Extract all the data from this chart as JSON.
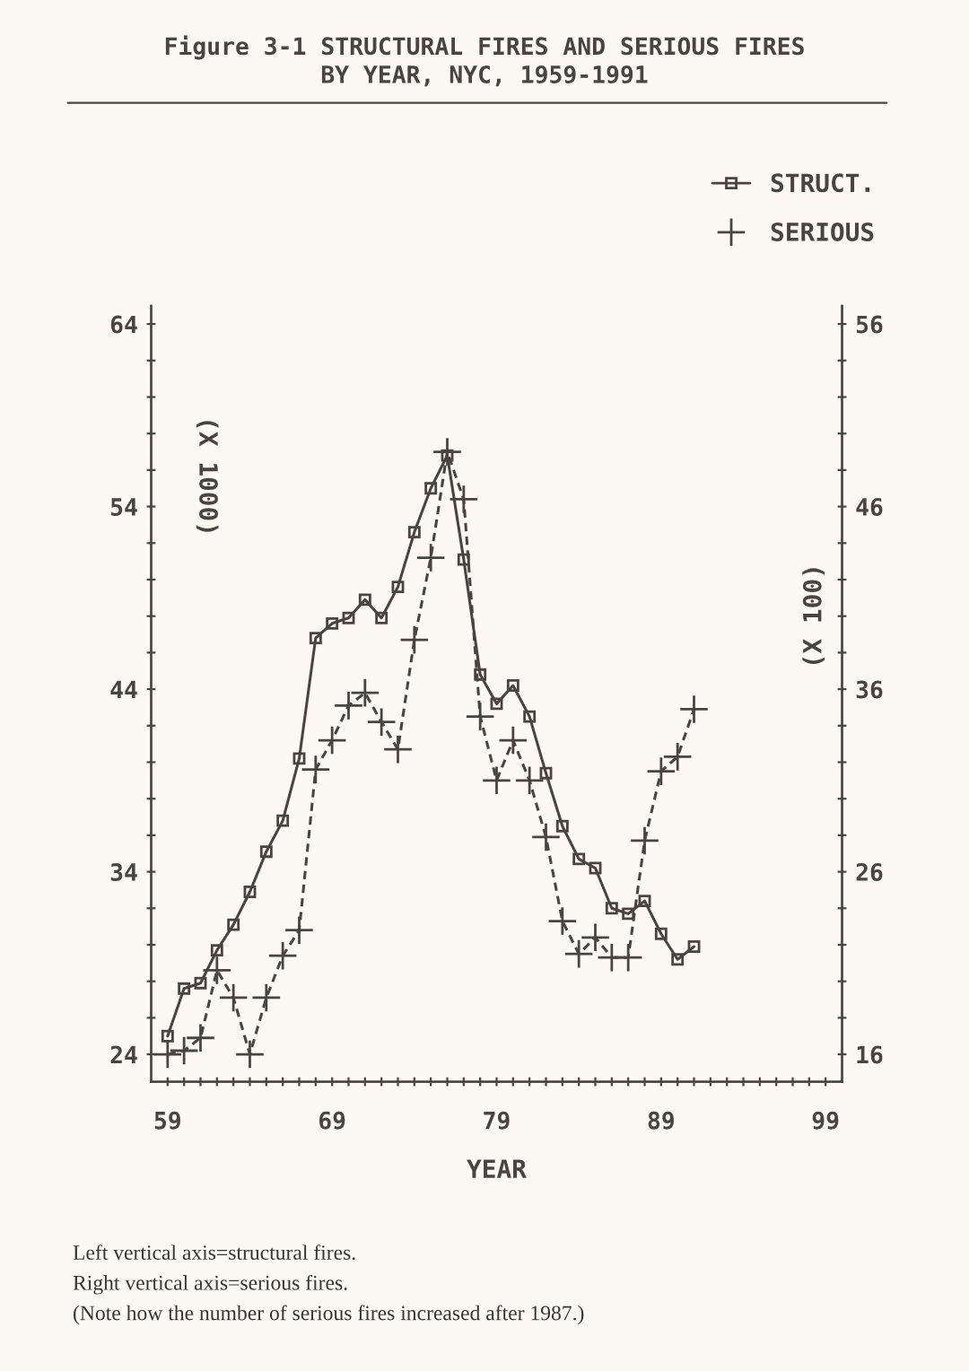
{
  "chart_data": {
    "type": "line",
    "title": "Figure 3-1 STRUCTURAL FIRES AND SERIOUS FIRES\nBY YEAR, NYC, 1959-1991",
    "xlabel": "YEAR",
    "ylabel": "(X 1000)",
    "y2label": "(X 100)",
    "x": [
      1959,
      1960,
      1961,
      1962,
      1963,
      1964,
      1965,
      1966,
      1967,
      1968,
      1969,
      1970,
      1971,
      1972,
      1973,
      1974,
      1975,
      1976,
      1977,
      1978,
      1979,
      1980,
      1981,
      1982,
      1983,
      1984,
      1985,
      1986,
      1987,
      1988,
      1989,
      1990,
      1991
    ],
    "series": [
      {
        "name": "STRUCT.",
        "color": "#4a4440",
        "marker": "square",
        "line_style": "solid",
        "values": [
          25.0,
          27.6,
          27.9,
          29.7,
          31.1,
          32.9,
          35.1,
          36.8,
          40.2,
          46.8,
          47.6,
          47.9,
          48.9,
          47.9,
          49.6,
          52.6,
          55.0,
          56.8,
          51.1,
          44.8,
          43.2,
          44.2,
          42.5,
          39.4,
          36.5,
          34.7,
          34.2,
          32.0,
          31.7,
          32.4,
          30.6,
          29.2,
          29.9
        ]
      },
      {
        "name": "SERIOUS",
        "color": "#4a4440",
        "marker": "cross",
        "line_style": "dashed",
        "axis": "y2",
        "values": [
          16.0,
          16.2,
          16.9,
          20.6,
          19.1,
          16.0,
          19.1,
          21.4,
          22.8,
          31.6,
          33.2,
          35.1,
          35.8,
          34.2,
          32.7,
          38.7,
          43.2,
          49.0,
          46.4,
          34.5,
          31.0,
          33.2,
          31.0,
          27.9,
          23.3,
          21.5,
          22.4,
          21.3,
          21.3,
          27.7,
          31.5,
          32.3,
          34.9
        ]
      }
    ],
    "xlim": [
      1958,
      2000
    ],
    "xticks": [
      {
        "value": 1959,
        "label": "59"
      },
      {
        "value": 1960,
        "label": null
      },
      {
        "value": 1961,
        "label": null
      },
      {
        "value": 1962,
        "label": null
      },
      {
        "value": 1963,
        "label": null
      },
      {
        "value": 1964,
        "label": null
      },
      {
        "value": 1965,
        "label": null
      },
      {
        "value": 1966,
        "label": null
      },
      {
        "value": 1967,
        "label": null
      },
      {
        "value": 1968,
        "label": null
      },
      {
        "value": 1969,
        "label": "69"
      },
      {
        "value": 1970,
        "label": null
      },
      {
        "value": 1971,
        "label": null
      },
      {
        "value": 1972,
        "label": null
      },
      {
        "value": 1973,
        "label": null
      },
      {
        "value": 1974,
        "label": null
      },
      {
        "value": 1975,
        "label": null
      },
      {
        "value": 1976,
        "label": null
      },
      {
        "value": 1977,
        "label": null
      },
      {
        "value": 1978,
        "label": null
      },
      {
        "value": 1979,
        "label": "79"
      },
      {
        "value": 1980,
        "label": null
      },
      {
        "value": 1981,
        "label": null
      },
      {
        "value": 1982,
        "label": null
      },
      {
        "value": 1983,
        "label": null
      },
      {
        "value": 1984,
        "label": null
      },
      {
        "value": 1985,
        "label": null
      },
      {
        "value": 1986,
        "label": null
      },
      {
        "value": 1987,
        "label": null
      },
      {
        "value": 1988,
        "label": null
      },
      {
        "value": 1989,
        "label": "89"
      },
      {
        "value": 1990,
        "label": null
      },
      {
        "value": 1991,
        "label": null
      },
      {
        "value": 1992,
        "label": null
      },
      {
        "value": 1993,
        "label": null
      },
      {
        "value": 1994,
        "label": null
      },
      {
        "value": 1995,
        "label": null
      },
      {
        "value": 1996,
        "label": null
      },
      {
        "value": 1997,
        "label": null
      },
      {
        "value": 1998,
        "label": null
      },
      {
        "value": 1999,
        "label": "99"
      }
    ],
    "ylim": [
      22.5,
      65
    ],
    "yticks": [
      24,
      {
        "value": 26,
        "label": null
      },
      {
        "value": 28,
        "label": null
      },
      {
        "value": 30,
        "label": null
      },
      {
        "value": 32,
        "label": null
      },
      34,
      {
        "value": 36,
        "label": null
      },
      {
        "value": 38,
        "label": null
      },
      {
        "value": 40,
        "label": null
      },
      {
        "value": 42,
        "label": null
      },
      44,
      {
        "value": 46,
        "label": null
      },
      {
        "value": 48,
        "label": null
      },
      {
        "value": 50,
        "label": null
      },
      {
        "value": 52,
        "label": null
      },
      54,
      {
        "value": 56,
        "label": null
      },
      {
        "value": 58,
        "label": null
      },
      {
        "value": 60,
        "label": null
      },
      {
        "value": 62,
        "label": null
      },
      64
    ],
    "y2lim": [
      14.5,
      57
    ],
    "y2ticks": [
      16,
      {
        "value": 18,
        "label": null
      },
      {
        "value": 20,
        "label": null
      },
      {
        "value": 22,
        "label": null
      },
      {
        "value": 24,
        "label": null
      },
      26,
      {
        "value": 28,
        "label": null
      },
      {
        "value": 30,
        "label": null
      },
      {
        "value": 32,
        "label": null
      },
      {
        "value": 34,
        "label": null
      },
      36,
      {
        "value": 38,
        "label": null
      },
      {
        "value": 40,
        "label": null
      },
      {
        "value": 42,
        "label": null
      },
      {
        "value": 44,
        "label": null
      },
      46,
      {
        "value": 48,
        "label": null
      },
      {
        "value": 50,
        "label": null
      },
      {
        "value": 52,
        "label": null
      },
      {
        "value": 54,
        "label": null
      },
      56
    ],
    "legend": "top right",
    "grid": false,
    "annotations": [
      "Left vertical axis=structural fires.",
      "Right vertical axis=serious fires.",
      "(Note how the number of serious fires increased after 1987.)"
    ]
  }
}
